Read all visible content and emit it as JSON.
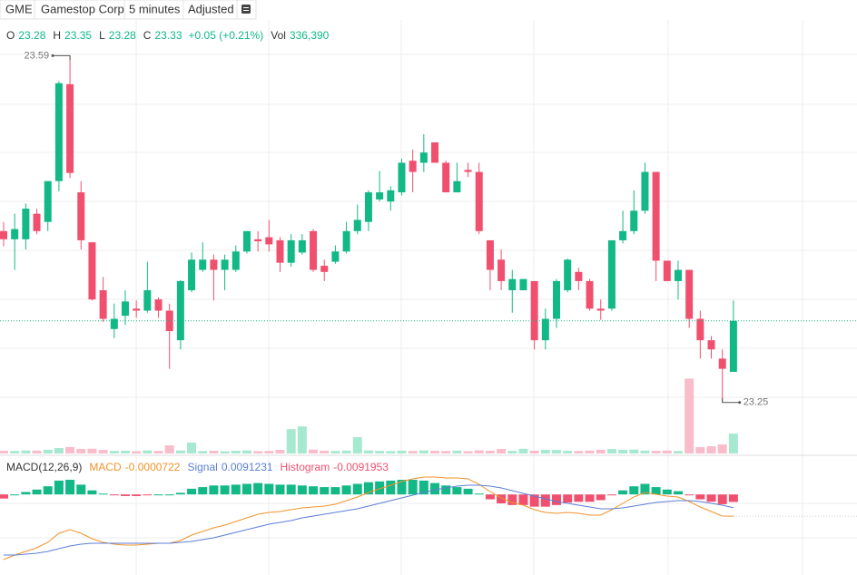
{
  "toolbar": {
    "symbol": "GME",
    "name": "Gamestop Corp",
    "interval": "5 minutes",
    "adjustment": "Adjusted"
  },
  "chart_data": [
    {
      "type": "candlestick",
      "legend": [
        {
          "name": "O",
          "value": "23.28"
        },
        {
          "name": "H",
          "value": "23.35"
        },
        {
          "name": "L",
          "value": "23.28"
        },
        {
          "name": "C",
          "value": "23.33"
        },
        {
          "name": "",
          "value": "+0.05 (+0.21%)"
        },
        {
          "name": "Vol",
          "value": "336,390"
        }
      ],
      "high_label": "23.59",
      "low_label": "23.25",
      "up_color": "#12b886",
      "down_color": "#f0506e",
      "ylim": [
        23.2,
        23.625
      ],
      "open": [
        23.418,
        23.41,
        23.41,
        23.435,
        23.427,
        23.467,
        23.562,
        23.456,
        23.407,
        23.36,
        23.322,
        23.335,
        23.342,
        23.34,
        23.351,
        23.34,
        23.311,
        23.36,
        23.38,
        23.39,
        23.38,
        23.38,
        23.398,
        23.41,
        23.412,
        23.409,
        23.387,
        23.397,
        23.418,
        23.384,
        23.388,
        23.398,
        23.418,
        23.427,
        23.449,
        23.447,
        23.456,
        23.487,
        23.485,
        23.505,
        23.485,
        23.456,
        23.478,
        23.476,
        23.409,
        23.39,
        23.36,
        23.36,
        23.369,
        23.311,
        23.332,
        23.36,
        23.378,
        23.369,
        23.342,
        23.342,
        23.409,
        23.418,
        23.438,
        23.476,
        23.389,
        23.369,
        23.38,
        23.332,
        23.311,
        23.293,
        23.28
      ],
      "high": [
        23.427,
        23.435,
        23.445,
        23.44,
        23.467,
        23.565,
        23.59,
        23.467,
        23.407,
        23.373,
        23.347,
        23.36,
        23.35,
        23.388,
        23.353,
        23.347,
        23.37,
        23.397,
        23.407,
        23.395,
        23.395,
        23.404,
        23.418,
        23.418,
        23.429,
        23.412,
        23.415,
        23.415,
        23.42,
        23.39,
        23.404,
        23.427,
        23.444,
        23.458,
        23.477,
        23.462,
        23.489,
        23.498,
        23.513,
        23.505,
        23.487,
        23.485,
        23.485,
        23.485,
        23.409,
        23.4,
        23.38,
        23.371,
        23.369,
        23.342,
        23.371,
        23.391,
        23.382,
        23.371,
        23.351,
        23.409,
        23.438,
        23.458,
        23.485,
        23.476,
        23.389,
        23.389,
        23.38,
        23.34,
        23.315,
        23.302,
        23.35
      ],
      "low": [
        23.403,
        23.38,
        23.4,
        23.415,
        23.418,
        23.457,
        23.47,
        23.4,
        23.35,
        23.329,
        23.313,
        23.326,
        23.333,
        23.338,
        23.333,
        23.283,
        23.302,
        23.358,
        23.378,
        23.35,
        23.36,
        23.378,
        23.396,
        23.398,
        23.398,
        23.378,
        23.383,
        23.395,
        23.378,
        23.369,
        23.386,
        23.396,
        23.415,
        23.418,
        23.447,
        23.438,
        23.453,
        23.456,
        23.476,
        23.485,
        23.456,
        23.456,
        23.471,
        23.415,
        23.36,
        23.36,
        23.338,
        23.36,
        23.302,
        23.302,
        23.323,
        23.358,
        23.36,
        23.34,
        23.331,
        23.34,
        23.406,
        23.415,
        23.435,
        23.369,
        23.369,
        23.351,
        23.323,
        23.293,
        23.293,
        23.25,
        23.28
      ],
      "close": [
        23.41,
        23.42,
        23.44,
        23.418,
        23.467,
        23.563,
        23.475,
        23.409,
        23.351,
        23.332,
        23.332,
        23.349,
        23.34,
        23.36,
        23.34,
        23.32,
        23.369,
        23.39,
        23.39,
        23.38,
        23.39,
        23.398,
        23.418,
        23.408,
        23.405,
        23.387,
        23.409,
        23.409,
        23.38,
        23.378,
        23.398,
        23.418,
        23.429,
        23.456,
        23.456,
        23.458,
        23.485,
        23.476,
        23.495,
        23.485,
        23.456,
        23.467,
        23.476,
        23.418,
        23.38,
        23.369,
        23.371,
        23.371,
        23.311,
        23.332,
        23.369,
        23.39,
        23.369,
        23.342,
        23.34,
        23.409,
        23.418,
        23.438,
        23.476,
        23.389,
        23.369,
        23.38,
        23.332,
        23.311,
        23.302,
        23.283,
        23.33
      ]
    },
    {
      "type": "volume",
      "up_color": "#a6e8d0",
      "down_color": "#f9bccb",
      "ylim": [
        0,
        2000000
      ],
      "values": [
        46000,
        42000,
        51000,
        48000,
        63000,
        92000,
        108000,
        77000,
        81000,
        60000,
        44000,
        47000,
        39000,
        52000,
        43000,
        138000,
        50000,
        184000,
        41000,
        45000,
        38000,
        46000,
        52000,
        40000,
        43000,
        61000,
        413000,
        459000,
        66000,
        47000,
        42000,
        49000,
        276000,
        51000,
        44000,
        40000,
        47000,
        43000,
        52000,
        45000,
        41000,
        48000,
        39000,
        53000,
        46000,
        77000,
        44000,
        80000,
        47000,
        62000,
        58000,
        45000,
        42000,
        49000,
        63000,
        76000,
        61000,
        66000,
        48000,
        44000,
        50000,
        42000,
        1270000,
        107000,
        122000,
        153000,
        336390
      ]
    },
    {
      "type": "macd",
      "title": "MACD(12,26,9)",
      "ylim": [
        -0.065,
        0.066
      ],
      "histogram_ylim": [
        -0.099,
        0.047
      ],
      "series": [
        {
          "name": "MACD",
          "value_label": "-0.0000722",
          "color": "#f0932b",
          "values": [
            -0.048,
            -0.043,
            -0.039,
            -0.035,
            -0.029,
            -0.019,
            -0.015,
            -0.019,
            -0.025,
            -0.029,
            -0.031,
            -0.032,
            -0.032,
            -0.031,
            -0.03,
            -0.03,
            -0.027,
            -0.021,
            -0.017,
            -0.013,
            -0.01,
            -0.006,
            -0.002,
            0.002,
            0.004,
            0.005,
            0.007,
            0.009,
            0.01,
            0.011,
            0.013,
            0.017,
            0.021,
            0.026,
            0.03,
            0.034,
            0.038,
            0.041,
            0.043,
            0.043,
            0.042,
            0.042,
            0.041,
            0.035,
            0.027,
            0.02,
            0.015,
            0.012,
            0.007,
            0.004,
            0.003,
            0.004,
            0.003,
            0.001,
            0.001,
            0.007,
            0.014,
            0.021,
            0.026,
            0.024,
            0.022,
            0.021,
            0.016,
            0.01,
            0.005,
            0.0,
            -7.22e-05
          ]
        },
        {
          "name": "Signal",
          "value_label": "0.0091231",
          "color": "#5b7fd6",
          "values": [
            -0.043,
            -0.043,
            -0.042,
            -0.041,
            -0.039,
            -0.036,
            -0.033,
            -0.031,
            -0.03,
            -0.03,
            -0.03,
            -0.03,
            -0.03,
            -0.03,
            -0.03,
            -0.03,
            -0.029,
            -0.028,
            -0.026,
            -0.024,
            -0.021,
            -0.018,
            -0.015,
            -0.012,
            -0.009,
            -0.007,
            -0.005,
            -0.002,
            0.0,
            0.002,
            0.004,
            0.006,
            0.008,
            0.011,
            0.014,
            0.017,
            0.02,
            0.023,
            0.026,
            0.029,
            0.031,
            0.033,
            0.034,
            0.034,
            0.033,
            0.031,
            0.028,
            0.025,
            0.022,
            0.019,
            0.016,
            0.014,
            0.012,
            0.01,
            0.008,
            0.008,
            0.009,
            0.011,
            0.013,
            0.015,
            0.016,
            0.017,
            0.017,
            0.016,
            0.014,
            0.012,
            0.0091231
          ]
        },
        {
          "name": "Histogram",
          "value_label": "-0.0091953",
          "color": "#f0506e",
          "up_color": "#12b886",
          "values": [
            -0.005,
            0.0,
            0.003,
            0.006,
            0.01,
            0.017,
            0.018,
            0.012,
            0.005,
            0.001,
            -0.001,
            -0.002,
            -0.002,
            -0.001,
            0.0,
            0.0,
            0.002,
            0.007,
            0.009,
            0.011,
            0.011,
            0.012,
            0.013,
            0.014,
            0.013,
            0.012,
            0.012,
            0.011,
            0.01,
            0.009,
            0.009,
            0.011,
            0.013,
            0.015,
            0.016,
            0.017,
            0.018,
            0.018,
            0.017,
            0.014,
            0.011,
            0.009,
            0.007,
            0.001,
            -0.006,
            -0.011,
            -0.013,
            -0.013,
            -0.015,
            -0.015,
            -0.013,
            -0.01,
            -0.009,
            -0.009,
            -0.007,
            -0.001,
            0.005,
            0.01,
            0.013,
            0.009,
            0.006,
            0.004,
            -0.001,
            -0.006,
            -0.009,
            -0.012,
            -0.0091953
          ]
        }
      ]
    }
  ]
}
